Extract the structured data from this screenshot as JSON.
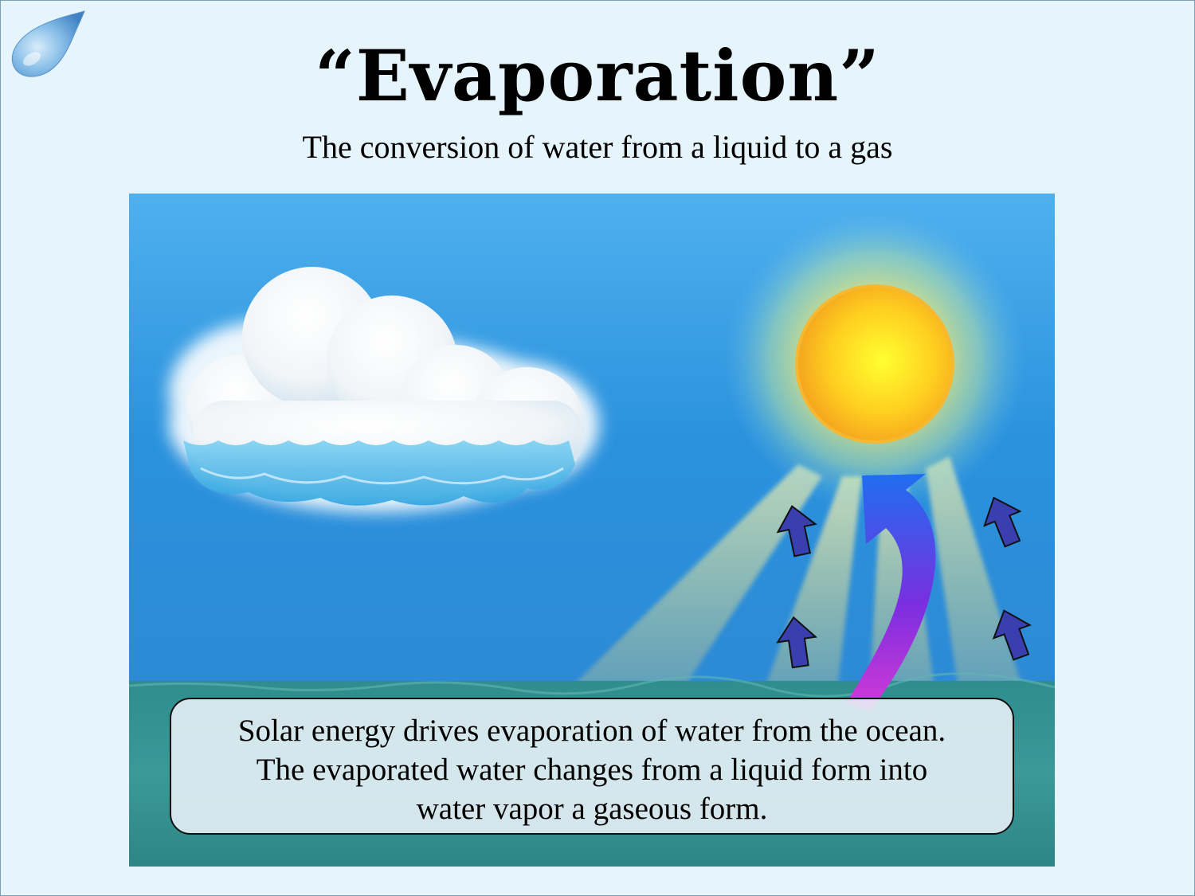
{
  "slide": {
    "title": "“Evaporation”",
    "subtitle": "The conversion of water from a liquid to a gas",
    "caption": "Solar energy drives evaporation of water from the ocean.\nThe evaporated water changes from a liquid form into\nwater vapor a gaseous form."
  },
  "illustration": {
    "icons": [
      "water-drop-icon",
      "cloud-icon",
      "sun-icon",
      "arrow-up-icon",
      "curved-arrow-icon"
    ],
    "colors": {
      "background": "#e6f4fc",
      "sky": "#2b94dd",
      "ocean": "#2e8b8a",
      "sun": "#ffd21a",
      "arrow": "#3a3fb0"
    }
  }
}
